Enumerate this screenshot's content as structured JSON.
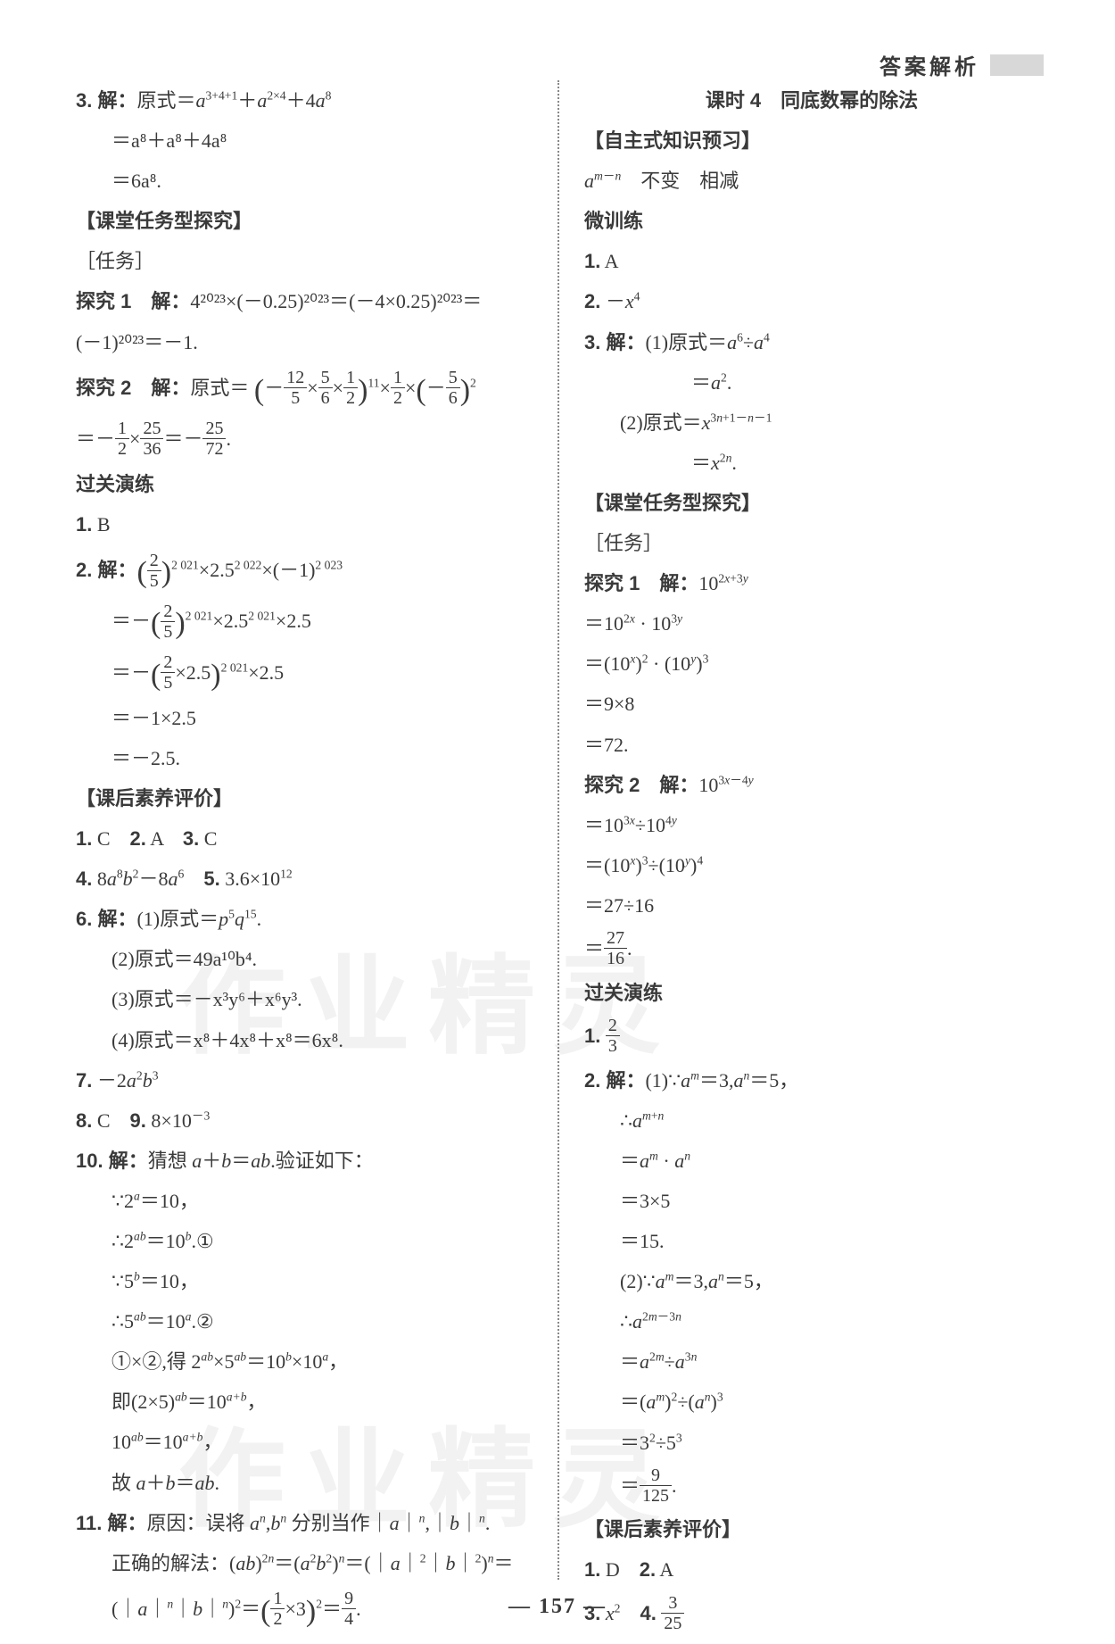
{
  "header": {
    "title": "答案解析"
  },
  "pagenum": "— 157 —",
  "watermark": "作业精灵",
  "left": {
    "l01": "3. 解：原式＝a³⁺⁴⁺¹＋a²ˣ⁴＋4a⁸",
    "l02": "＝a⁸＋a⁸＋4a⁸",
    "l03": "＝6a⁸.",
    "l04": "【课堂任务型探究】",
    "l05": "［任务］",
    "l06a": "探究 1　解：",
    "l06b": "4²⁰²³×(－0.25)²⁰²³＝(－4×0.25)²⁰²³＝",
    "l07": "(－1)²⁰²³＝－1.",
    "l08a": "探究 2　解：",
    "l08b": "原式＝",
    "l09": "过关演练",
    "l10": "1. B",
    "l11": "2. 解：",
    "l12": "＝－",
    "l13": "＝－",
    "l14": "＝－1×2.5",
    "l15": "＝－2.5.",
    "l16": "【课后素养评价】",
    "l17": "1. C　2. A　3. C",
    "l18": "4. 8a⁸b²－8a⁶　5. 3.6×10¹²",
    "l19": "6. 解：(1)原式＝p⁵q¹⁵.",
    "l20": "(2)原式＝49a¹⁰b⁴.",
    "l21": "(3)原式＝－x³y⁶＋x⁶y³.",
    "l22": "(4)原式＝x⁸＋4x⁸＋x⁸＝6x⁸.",
    "l23": "7. －2a²b³",
    "l24": "8. C　9. 8×10⁻³",
    "l25": "10. 解：猜想 a＋b＝ab.验证如下：",
    "l26": "∵2ᵃ＝10，",
    "l27": "∴2ᵃᵇ＝10ᵇ.①",
    "l28": "∵5ᵇ＝10，",
    "l29": "∴5ᵃᵇ＝10ᵃ.②",
    "l30": "①×②,得 2ᵃᵇ×5ᵃᵇ＝10ᵇ×10ᵃ，",
    "l31": "即(2×5)ᵃᵇ＝10ᵃ⁺ᵇ，",
    "l32": "10ᵃᵇ＝10ᵃ⁺ᵇ，",
    "l33": "故 a＋b＝ab.",
    "l34": "11. 解：原因：误将 aⁿ,bⁿ 分别当作｜a｜ⁿ,｜b｜ⁿ.",
    "l35": "正确的解法：(ab)²ⁿ＝(a²b²)ⁿ＝(｜a｜²｜b｜²)ⁿ＝",
    "l36": "(｜a｜ⁿ｜b｜ⁿ)²＝"
  },
  "right": {
    "r01": "课时 4　同底数幂的除法",
    "r02": "【自主式知识预习】",
    "r03": "aᵐ⁻ⁿ　不变　相减",
    "r04": "微训练",
    "r05": "1. A",
    "r06": "2. －x⁴",
    "r07": "3. 解：(1)原式＝a⁶÷a⁴",
    "r08": "＝a².",
    "r09": "(2)原式＝x³ⁿ⁺¹⁻ⁿ⁻¹",
    "r10": "＝x²ⁿ.",
    "r11": "【课堂任务型探究】",
    "r12": "［任务］",
    "r13a": "探究 1　解：",
    "r13b": "10²ˣ⁺³ʸ",
    "r14": "＝10²ˣ · 10³ʸ",
    "r15": "＝(10ˣ)² · (10ʸ)³",
    "r16": "＝9×8",
    "r17": "＝72.",
    "r18a": "探究 2　解：",
    "r18b": "10³ˣ⁻⁴ʸ",
    "r19": "＝10³ˣ÷10⁴ʸ",
    "r20": "＝(10ˣ)³÷(10ʸ)⁴",
    "r21": "＝27÷16",
    "r22": "过关演练",
    "r23": "1.",
    "r24": "2. 解：(1)∵aᵐ＝3,aⁿ＝5，",
    "r25": "∴aᵐ⁺ⁿ",
    "r26": "＝aᵐ · aⁿ",
    "r27": "＝3×5",
    "r28": "＝15.",
    "r29": "(2)∵aᵐ＝3,aⁿ＝5，",
    "r30": "∴a²ᵐ⁻³ⁿ",
    "r31": "＝a²ᵐ÷a³ⁿ",
    "r32": "＝(aᵐ)²÷(aⁿ)³",
    "r33": "＝3²÷5³",
    "r34": "【课后素养评价】",
    "r35": "1. D　2. A",
    "r36": "3. x²　4."
  },
  "fracs": {
    "f12_5": {
      "n": "12",
      "d": "5"
    },
    "f5_6": {
      "n": "5",
      "d": "6"
    },
    "f1_2": {
      "n": "1",
      "d": "2"
    },
    "f25_36": {
      "n": "25",
      "d": "36"
    },
    "f25_72": {
      "n": "25",
      "d": "72"
    },
    "f2_5": {
      "n": "2",
      "d": "5"
    },
    "f9_4": {
      "n": "9",
      "d": "4"
    },
    "f27_16": {
      "n": "27",
      "d": "16"
    },
    "f2_3": {
      "n": "2",
      "d": "3"
    },
    "f9_125": {
      "n": "9",
      "d": "125"
    },
    "f3_25": {
      "n": "3",
      "d": "25"
    }
  }
}
